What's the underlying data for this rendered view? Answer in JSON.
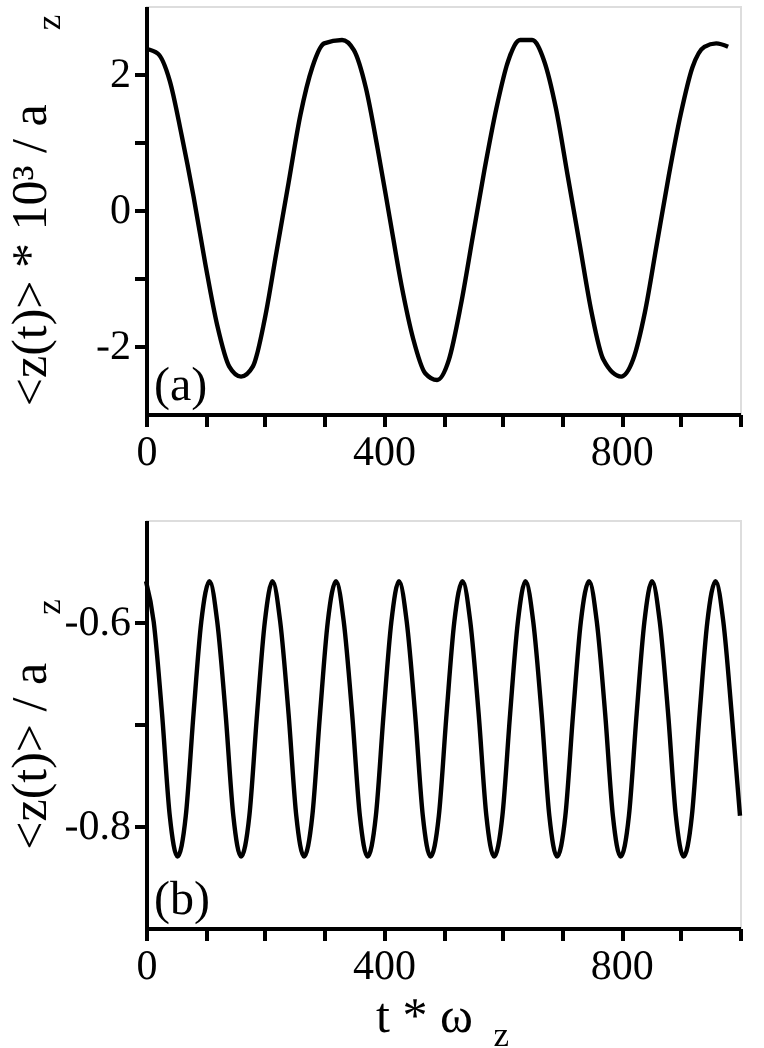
{
  "chart_data": [
    {
      "type": "line",
      "ylabel": "<z(t)> * 10³ / a$_{z}$",
      "annotations": [
        "(a)"
      ],
      "grid": false,
      "legend": false,
      "xlim": [
        0,
        1000
      ],
      "ylim": [
        -3,
        3
      ],
      "xticks": [
        0,
        {
          "value": 100,
          "label": null
        },
        {
          "value": 200,
          "label": null
        },
        {
          "value": 300,
          "label": null
        },
        400,
        {
          "value": 500,
          "label": null
        },
        {
          "value": 600,
          "label": null
        },
        {
          "value": 700,
          "label": null
        },
        800,
        {
          "value": 900,
          "label": null
        },
        {
          "value": 1000,
          "label": null
        }
      ],
      "yticks": [
        -2,
        {
          "value": -1,
          "label": null
        },
        0,
        {
          "value": 1,
          "label": null
        },
        2
      ],
      "series": [
        {
          "color": "#000000",
          "x": [
            0,
            20,
            40,
            60,
            80,
            100,
            120,
            140,
            160,
            180,
            200,
            220,
            240,
            260,
            280,
            300,
            330,
            350,
            370,
            390,
            410,
            430,
            450,
            470,
            490,
            510,
            530,
            550,
            570,
            590,
            610,
            630,
            650,
            670,
            690,
            710,
            730,
            750,
            770,
            800,
            820,
            840,
            860,
            880,
            900,
            920,
            940,
            960,
            980
          ],
          "values": [
            2.37,
            2.3,
            1.9,
            1.1,
            0.2,
            -0.8,
            -1.7,
            -2.3,
            -2.45,
            -2.3,
            -1.6,
            -0.6,
            0.4,
            1.4,
            2.1,
            2.45,
            2.5,
            2.35,
            1.8,
            0.9,
            -0.1,
            -1.1,
            -1.9,
            -2.4,
            -2.5,
            -2.2,
            -1.4,
            -0.4,
            0.6,
            1.5,
            2.2,
            2.5,
            2.5,
            2.2,
            1.5,
            0.5,
            -0.5,
            -1.5,
            -2.2,
            -2.45,
            -2.2,
            -1.5,
            -0.5,
            0.5,
            1.4,
            2.1,
            2.4,
            2.45,
            2.4
          ]
        }
      ]
    },
    {
      "type": "line",
      "xlabel": "t * ω$_{z}$",
      "ylabel": "<z(t)> / a$_{z}$",
      "annotations": [
        "(b)"
      ],
      "grid": false,
      "legend": false,
      "xlim": [
        0,
        1000
      ],
      "ylim": [
        -0.9,
        -0.5
      ],
      "xticks": [
        0,
        {
          "value": 100,
          "label": null
        },
        {
          "value": 200,
          "label": null
        },
        {
          "value": 300,
          "label": null
        },
        400,
        {
          "value": 500,
          "label": null
        },
        {
          "value": 600,
          "label": null
        },
        {
          "value": 700,
          "label": null
        },
        800,
        {
          "value": 900,
          "label": null
        },
        {
          "value": 1000,
          "label": null
        }
      ],
      "yticks": [
        -0.8,
        {
          "value": -0.7,
          "label": null
        },
        -0.6
      ],
      "series": [
        {
          "color": "#000000",
          "x": [
            0,
            13,
            27,
            40,
            53,
            67,
            80,
            93,
            107,
            120,
            134,
            147,
            160,
            174,
            187,
            200,
            213,
            226,
            240,
            253,
            266,
            280,
            293,
            306,
            320,
            333,
            347,
            360,
            373,
            387,
            400,
            413,
            426,
            439,
            453,
            466,
            479,
            493,
            506,
            519,
            533,
            546,
            560,
            573,
            586,
            600,
            613,
            626,
            639,
            652,
            666,
            679,
            692,
            706,
            719,
            732,
            746,
            759,
            773,
            786,
            799,
            813,
            826,
            839,
            852,
            865,
            879,
            892,
            905,
            919,
            932,
            945,
            959,
            972,
            986,
            1000
          ],
          "values": [
            -0.56,
            -0.6,
            -0.69,
            -0.79,
            -0.83,
            -0.79,
            -0.69,
            -0.6,
            -0.56,
            -0.6,
            -0.69,
            -0.79,
            -0.83,
            -0.79,
            -0.69,
            -0.6,
            -0.56,
            -0.6,
            -0.69,
            -0.79,
            -0.83,
            -0.79,
            -0.69,
            -0.6,
            -0.56,
            -0.6,
            -0.69,
            -0.79,
            -0.83,
            -0.79,
            -0.69,
            -0.6,
            -0.56,
            -0.6,
            -0.69,
            -0.79,
            -0.83,
            -0.79,
            -0.69,
            -0.6,
            -0.56,
            -0.6,
            -0.69,
            -0.79,
            -0.83,
            -0.79,
            -0.69,
            -0.6,
            -0.56,
            -0.6,
            -0.69,
            -0.79,
            -0.83,
            -0.79,
            -0.69,
            -0.6,
            -0.56,
            -0.6,
            -0.69,
            -0.79,
            -0.83,
            -0.79,
            -0.69,
            -0.6,
            -0.56,
            -0.6,
            -0.69,
            -0.79,
            -0.83,
            -0.79,
            -0.69,
            -0.6,
            -0.56,
            -0.6,
            -0.69,
            -0.79
          ]
        }
      ]
    }
  ]
}
